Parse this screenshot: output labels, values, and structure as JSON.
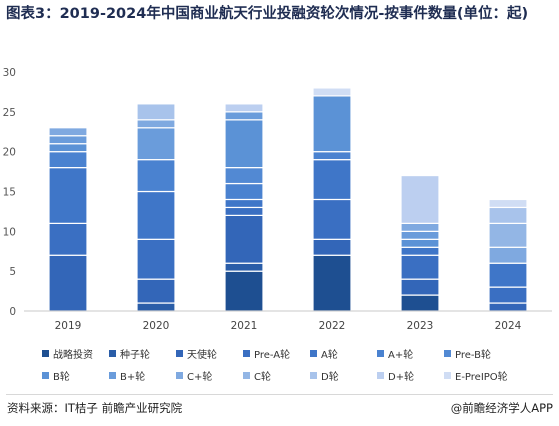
{
  "title": "图表3：2019-2024年中国商业航天行业投融资轮次情况-按事件数量(单位：起)",
  "source": "资料来源：IT桔子 前瞻产业研究院",
  "brand": "@前瞻经济学人APP",
  "chart_data": {
    "type": "bar",
    "stacked": true,
    "categories": [
      "2019",
      "2020",
      "2021",
      "2022",
      "2023",
      "2024"
    ],
    "ylim": [
      0,
      30
    ],
    "yticks": [
      0,
      5,
      10,
      15,
      20,
      25,
      30
    ],
    "grid": false,
    "legend_position": "bottom",
    "series": [
      {
        "name": "战略投资",
        "color": "#1e4f91",
        "values": [
          0,
          0,
          5,
          7,
          2,
          0
        ]
      },
      {
        "name": "种子轮",
        "color": "#2a5da8",
        "values": [
          0,
          1,
          1,
          0,
          0,
          0
        ]
      },
      {
        "name": "天使轮",
        "color": "#3366b8",
        "values": [
          7,
          3,
          6,
          2,
          2,
          1
        ]
      },
      {
        "name": "Pre-A轮",
        "color": "#3a6fc2",
        "values": [
          4,
          5,
          1,
          5,
          3,
          2
        ]
      },
      {
        "name": "A轮",
        "color": "#3f76c8",
        "values": [
          7,
          6,
          1,
          5,
          1,
          3
        ]
      },
      {
        "name": "A+轮",
        "color": "#4a82d0",
        "values": [
          2,
          4,
          2,
          1,
          0,
          0
        ]
      },
      {
        "name": "Pre-B轮",
        "color": "#5289d3",
        "values": [
          0,
          0,
          2,
          0,
          0,
          0
        ]
      },
      {
        "name": "B轮",
        "color": "#5b92d6",
        "values": [
          1,
          0,
          6,
          7,
          1,
          0
        ]
      },
      {
        "name": "B+轮",
        "color": "#6a9cdb",
        "values": [
          1,
          4,
          1,
          0,
          1,
          0
        ]
      },
      {
        "name": "C+轮",
        "color": "#7fa9e0",
        "values": [
          1,
          1,
          0,
          0,
          1,
          2
        ]
      },
      {
        "name": "C轮",
        "color": "#93b6e5",
        "values": [
          0,
          0,
          0,
          0,
          0,
          3
        ]
      },
      {
        "name": "D轮",
        "color": "#a8c3eb",
        "values": [
          0,
          2,
          0,
          0,
          0,
          2
        ]
      },
      {
        "name": "D+轮",
        "color": "#bccff0",
        "values": [
          0,
          0,
          1,
          0,
          6,
          0
        ]
      },
      {
        "name": "E-PreIPO轮",
        "color": "#d0ddf4",
        "values": [
          0,
          0,
          0,
          1,
          0,
          1
        ]
      }
    ]
  }
}
